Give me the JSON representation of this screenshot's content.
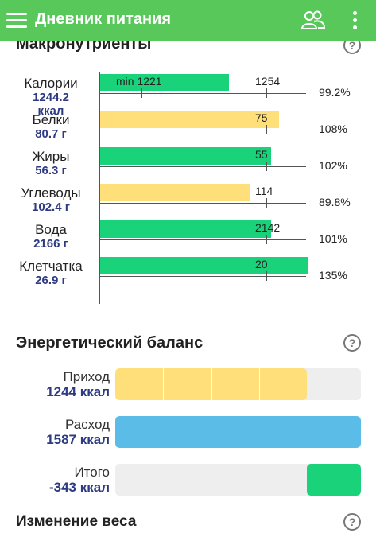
{
  "app_bar": {
    "title": "Дневник питания",
    "accent": "#58c85a"
  },
  "macros": {
    "title": "Макронутриенты",
    "help": "?",
    "rows": [
      {
        "name": "Калории",
        "value": "1244.2",
        "unit": "ккал",
        "bar_color": "green",
        "bar_fill": 0.62,
        "tick_label": "1254",
        "min_label": "min 1221",
        "percent": "99.2%"
      },
      {
        "name": "Белки",
        "value": "80.7 г",
        "bar_color": "yellow",
        "bar_fill": 0.86,
        "tick_label": "75",
        "percent": "108%"
      },
      {
        "name": "Жиры",
        "value": "56.3 г",
        "bar_color": "green",
        "bar_fill": 0.82,
        "tick_label": "55",
        "percent": "102%"
      },
      {
        "name": "Углеводы",
        "value": "102.4 г",
        "bar_color": "yellow",
        "bar_fill": 0.72,
        "tick_label": "114",
        "percent": "89.8%"
      },
      {
        "name": "Вода",
        "value": "2166 г",
        "bar_color": "green",
        "bar_fill": 0.82,
        "tick_label": "2142",
        "percent": "101%"
      },
      {
        "name": "Клетчатка",
        "value": "26.9 г",
        "bar_color": "green",
        "bar_fill": 1.0,
        "tick_label": "20",
        "percent": "135%"
      }
    ]
  },
  "energy_balance": {
    "title": "Энергетический баланс",
    "help": "?",
    "rows": [
      {
        "name": "Приход",
        "value": "1244 ккал",
        "color": "#ffdf7a",
        "fill": 0.78,
        "segments": 4
      },
      {
        "name": "Расход",
        "value": "1587 ккал",
        "color": "#5bbce8",
        "fill": 1.0
      },
      {
        "name": "Итого",
        "value": "-343 ккал",
        "color": "#19d27a",
        "fill": 0.22,
        "align": "right"
      }
    ]
  },
  "weight_change": {
    "title": "Изменение веса",
    "help": "?"
  }
}
